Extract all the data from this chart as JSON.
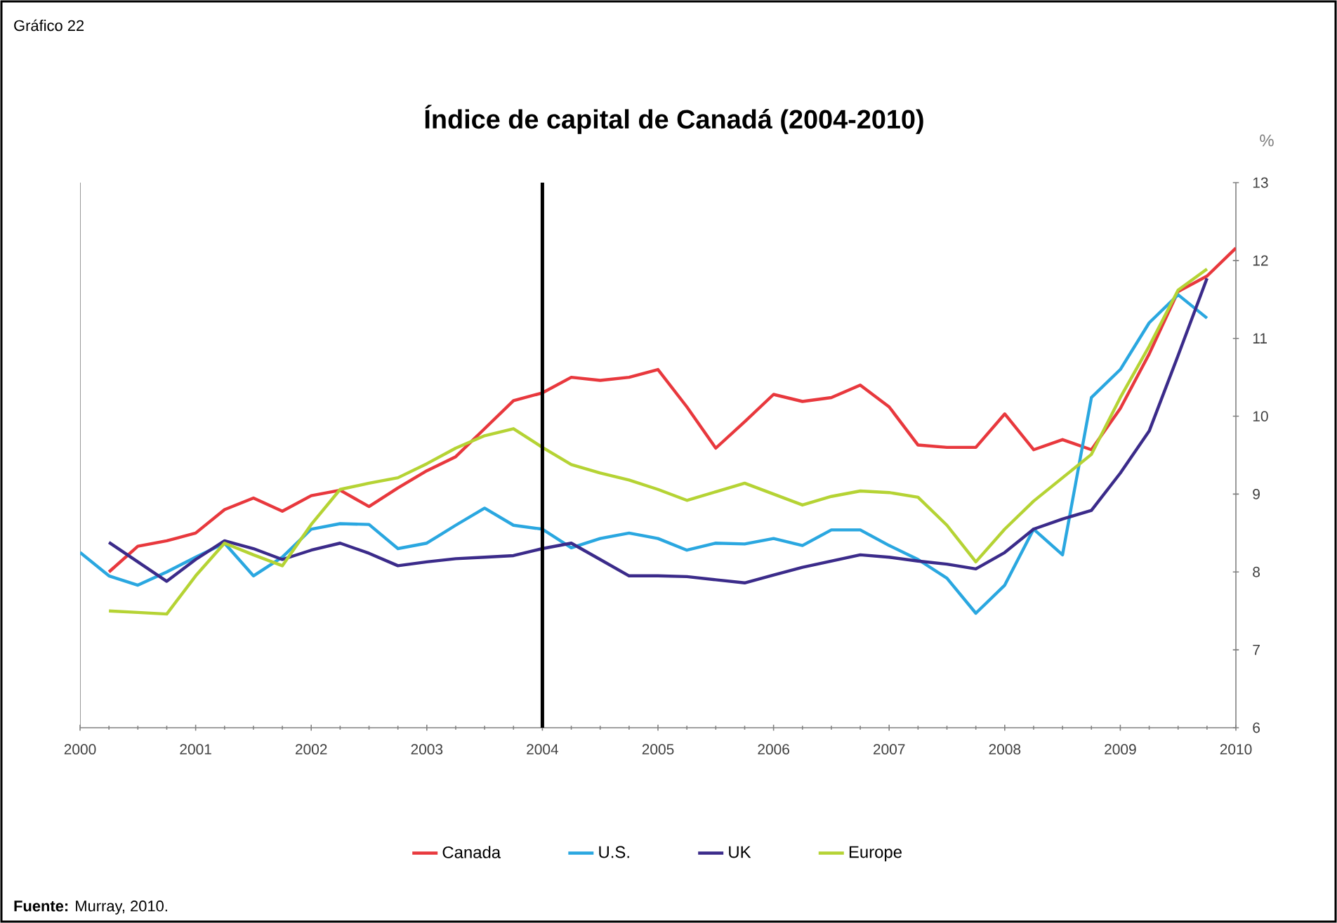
{
  "chart_data": {
    "type": "line",
    "title": "Índice de capital de Canadá (2004-2010)",
    "ylabel": "%",
    "annotations": [
      "Gráfico 22",
      "**Fuente:** Murray, 2010."
    ],
    "x": [
      2000,
      2000.25,
      2000.5,
      2000.75,
      2001,
      2001.25,
      2001.5,
      2001.75,
      2002,
      2002.25,
      2002.5,
      2002.75,
      2003,
      2003.25,
      2003.5,
      2003.75,
      2004,
      2004.25,
      2004.5,
      2004.75,
      2005,
      2005.25,
      2005.5,
      2005.75,
      2006,
      2006.25,
      2006.5,
      2006.75,
      2007,
      2007.25,
      2007.5,
      2007.75,
      2008,
      2008.25,
      2008.5,
      2008.75,
      2009,
      2009.25,
      2009.5,
      2009.75,
      2010
    ],
    "series": [
      {
        "name": "Canada",
        "color": "#e8383d",
        "values": [
          null,
          8.0,
          8.33,
          8.4,
          8.5,
          8.8,
          8.95,
          8.78,
          8.98,
          9.05,
          8.84,
          9.08,
          9.3,
          9.48,
          9.84,
          10.2,
          10.3,
          10.5,
          10.46,
          10.5,
          10.6,
          10.12,
          9.59,
          9.93,
          10.28,
          10.19,
          10.24,
          10.4,
          10.12,
          9.63,
          9.6,
          9.6,
          10.03,
          9.57,
          9.7,
          9.57,
          10.1,
          10.8,
          11.6,
          11.8,
          12.16
        ]
      },
      {
        "name": "U.S.",
        "color": "#2aa7e0",
        "values": [
          8.25,
          7.95,
          7.83,
          8.0,
          8.19,
          8.37,
          7.95,
          8.19,
          8.55,
          8.62,
          8.61,
          8.3,
          8.37,
          8.6,
          8.82,
          8.6,
          8.55,
          8.31,
          8.43,
          8.5,
          8.43,
          8.28,
          8.37,
          8.36,
          8.43,
          8.34,
          8.54,
          8.54,
          8.34,
          8.16,
          7.92,
          7.47,
          7.83,
          8.55,
          8.22,
          10.24,
          10.6,
          11.2,
          11.56,
          11.26,
          null
        ]
      },
      {
        "name": "UK",
        "color": "#3b2b8a",
        "values": [
          null,
          8.38,
          8.13,
          7.88,
          8.16,
          8.4,
          8.3,
          8.16,
          8.28,
          8.37,
          8.24,
          8.08,
          8.13,
          8.17,
          8.19,
          8.21,
          8.3,
          8.37,
          8.16,
          7.95,
          7.95,
          7.94,
          7.9,
          7.86,
          7.96,
          8.06,
          8.14,
          8.22,
          8.19,
          8.14,
          8.1,
          8.04,
          8.25,
          8.55,
          8.68,
          8.79,
          9.27,
          9.81,
          10.78,
          11.77,
          null
        ]
      },
      {
        "name": "Europe",
        "color": "#b5d334",
        "values": [
          null,
          7.5,
          7.48,
          7.46,
          7.95,
          8.37,
          8.22,
          8.08,
          8.61,
          9.06,
          9.14,
          9.21,
          9.39,
          9.59,
          9.75,
          9.84,
          9.6,
          9.38,
          9.27,
          9.18,
          9.06,
          8.92,
          9.03,
          9.14,
          9.0,
          8.86,
          8.97,
          9.04,
          9.02,
          8.96,
          8.6,
          8.13,
          8.55,
          8.91,
          9.21,
          9.51,
          10.24,
          10.9,
          11.62,
          11.89,
          null
        ]
      }
    ],
    "xlim": [
      2000,
      2010
    ],
    "xticks": [
      2000,
      2001,
      2002,
      2003,
      2004,
      2005,
      2006,
      2007,
      2008,
      2009,
      2010
    ],
    "ylim": [
      6,
      13
    ],
    "yticks": [
      6,
      7,
      8,
      9,
      10,
      11,
      12,
      13
    ],
    "ref_lines": [
      {
        "axis": "x",
        "value": 2004,
        "color": "#000000"
      }
    ],
    "grid": false,
    "legend": "bottom",
    "marker": "none",
    "line_style": "solid"
  }
}
